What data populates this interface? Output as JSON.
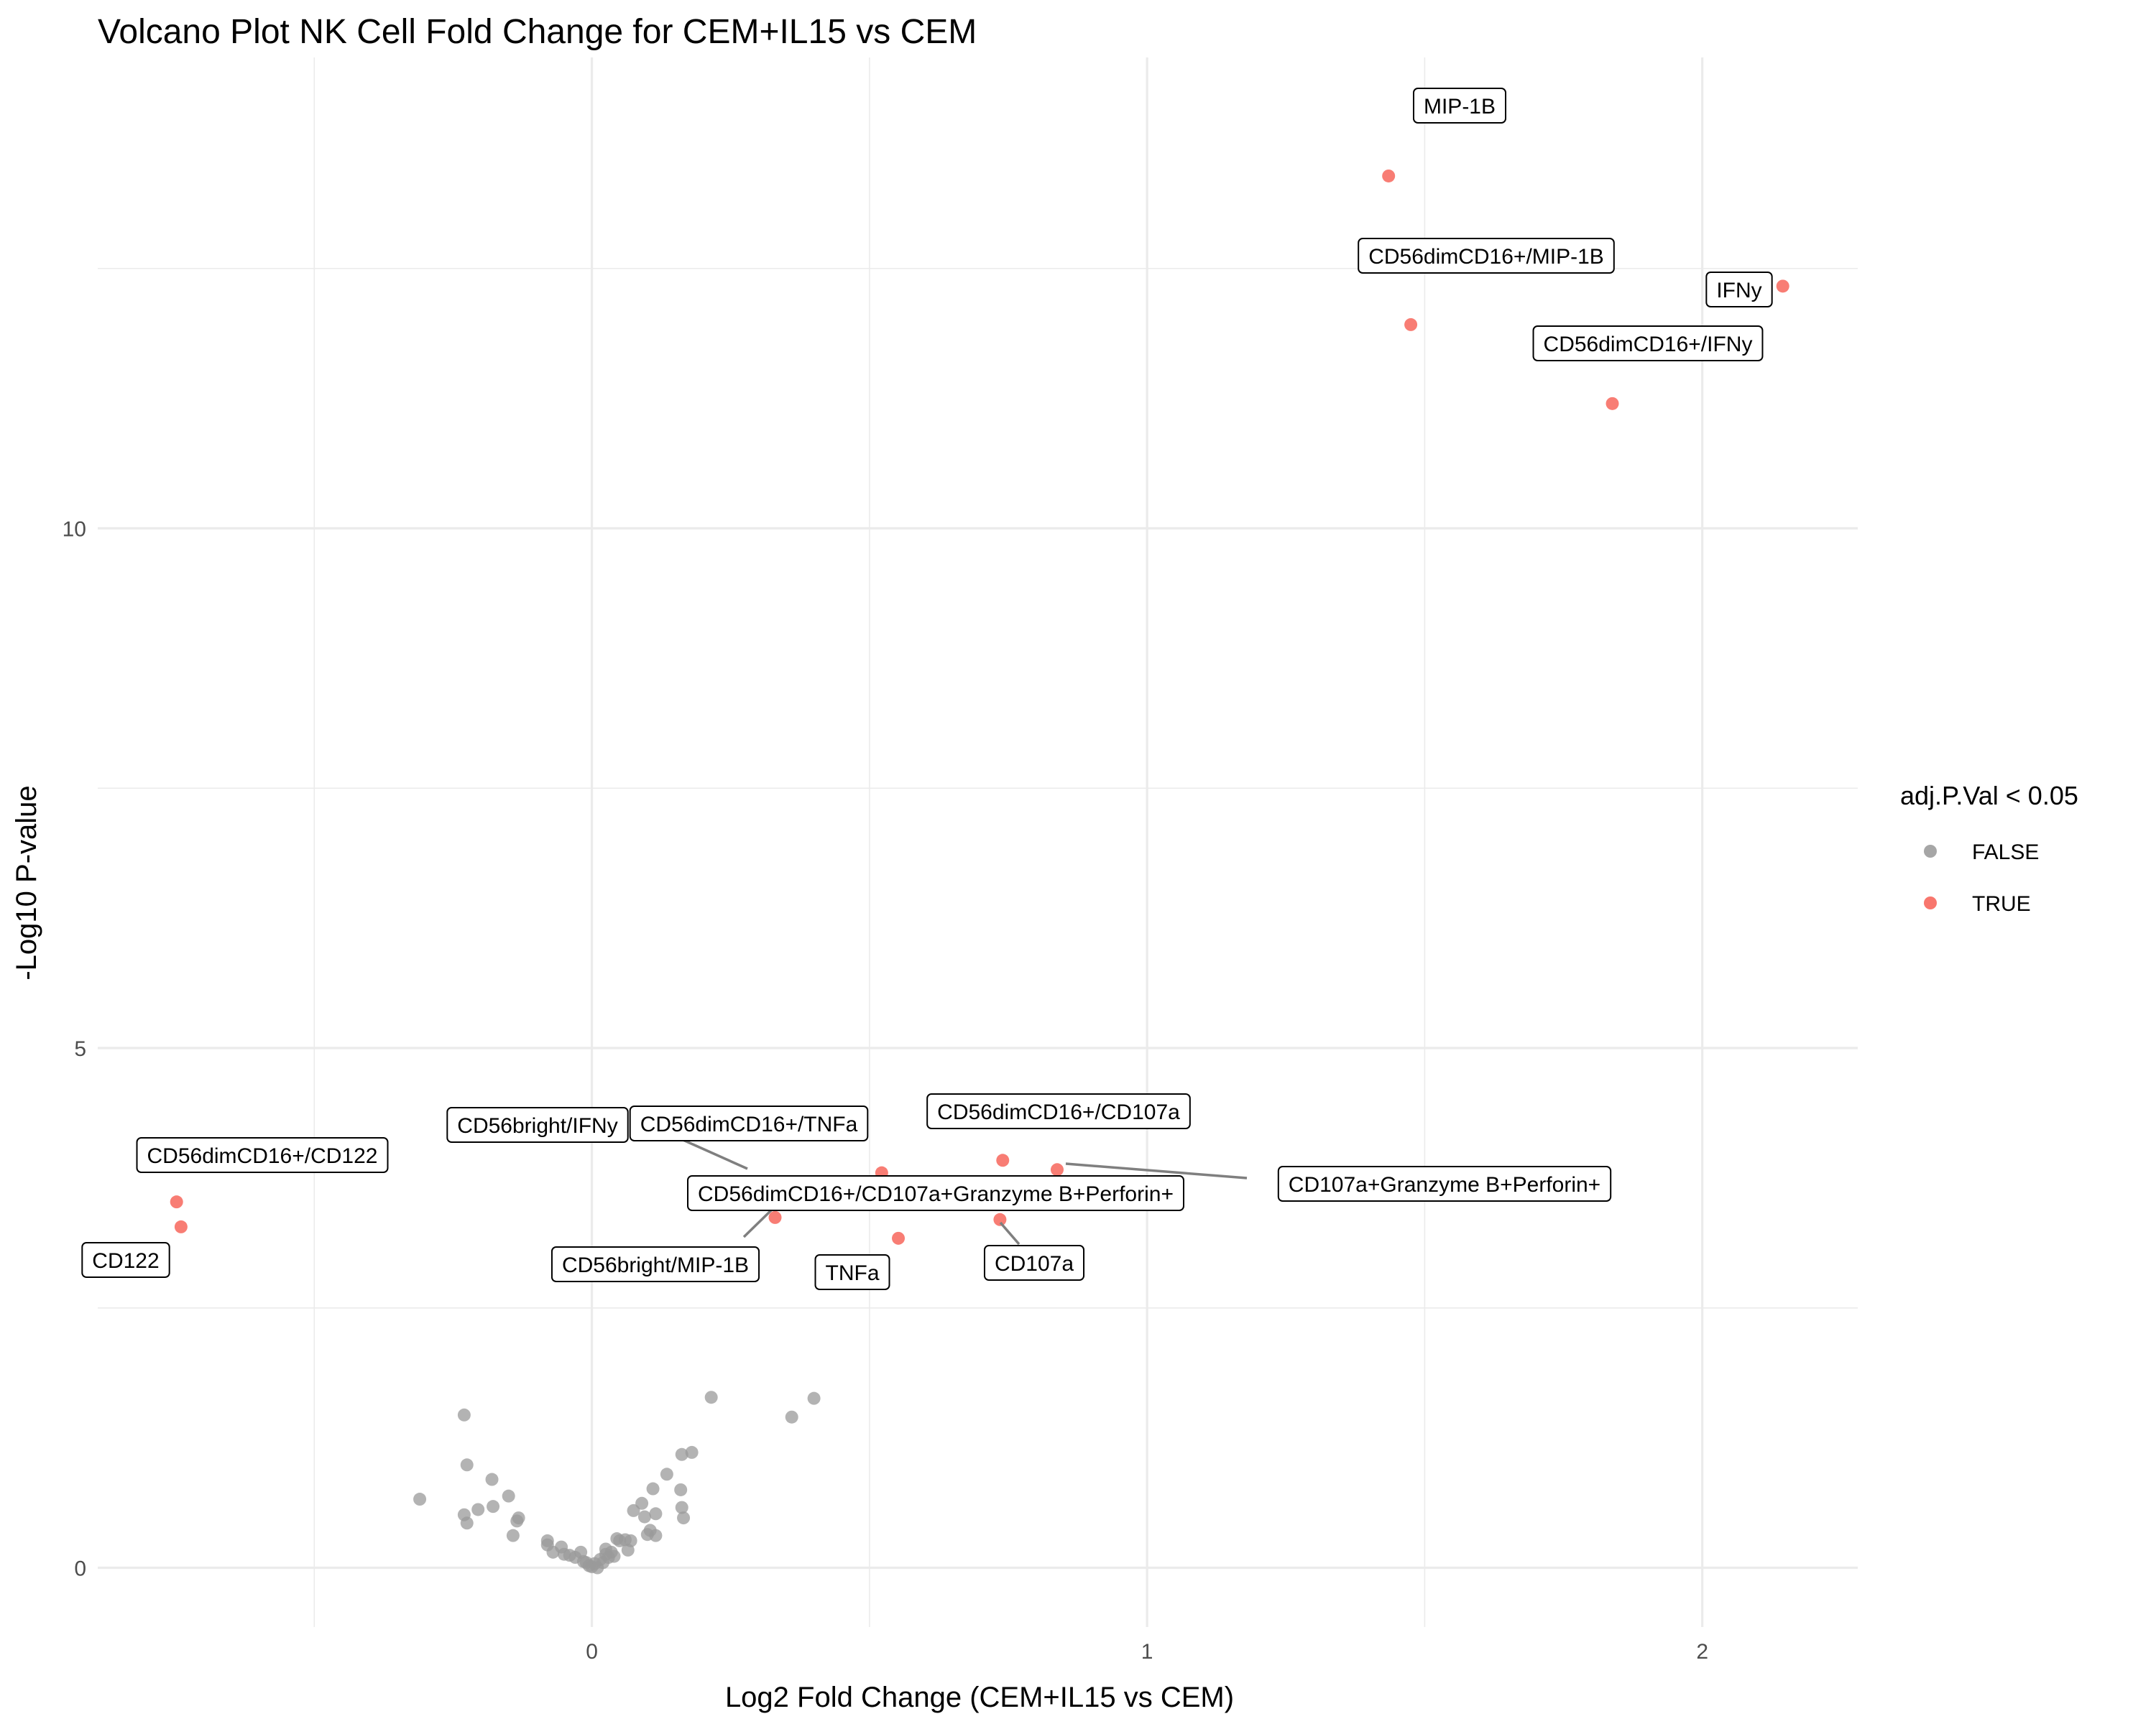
{
  "chart_data": {
    "type": "scatter",
    "title": "Volcano Plot NK Cell Fold Change for CEM+IL15 vs CEM",
    "xlabel": "Log2 Fold Change (CEM+IL15 vs CEM)",
    "ylabel": "-Log10 P-value",
    "xlim": [
      -0.89,
      2.28
    ],
    "ylim": [
      -0.57,
      14.53
    ],
    "x_ticks": [
      0,
      1,
      2
    ],
    "y_ticks": [
      0,
      5,
      10
    ],
    "grid": true,
    "legend": {
      "title": "adj.P.Val < 0.05",
      "position": "right",
      "entries": [
        {
          "label": "FALSE",
          "color": "#a6a6a6"
        },
        {
          "label": "TRUE",
          "color": "#f8766d"
        }
      ]
    },
    "series": [
      {
        "name": "FALSE",
        "color": "#999999",
        "points": [
          [
            -0.31,
            0.66
          ],
          [
            -0.23,
            1.47
          ],
          [
            -0.225,
            0.99
          ],
          [
            -0.23,
            0.51
          ],
          [
            -0.225,
            0.43
          ],
          [
            -0.205,
            0.56
          ],
          [
            -0.18,
            0.85
          ],
          [
            -0.178,
            0.59
          ],
          [
            -0.15,
            0.69
          ],
          [
            -0.142,
            0.31
          ],
          [
            -0.135,
            0.45
          ],
          [
            -0.132,
            0.48
          ],
          [
            -0.08,
            0.26
          ],
          [
            -0.08,
            0.22
          ],
          [
            -0.07,
            0.15
          ],
          [
            -0.055,
            0.2
          ],
          [
            -0.05,
            0.13
          ],
          [
            -0.04,
            0.12
          ],
          [
            -0.03,
            0.1
          ],
          [
            -0.02,
            0.15
          ],
          [
            -0.015,
            0.06
          ],
          [
            -0.01,
            0.05
          ],
          [
            -0.005,
            0.02
          ],
          [
            0.0,
            0.01
          ],
          [
            0.005,
            0.04
          ],
          [
            0.01,
            0.0
          ],
          [
            0.015,
            0.08
          ],
          [
            0.02,
            0.05
          ],
          [
            0.025,
            0.13
          ],
          [
            0.03,
            0.1
          ],
          [
            0.035,
            0.15
          ],
          [
            0.04,
            0.11
          ],
          [
            0.045,
            0.28
          ],
          [
            0.05,
            0.26
          ],
          [
            0.06,
            0.27
          ],
          [
            0.065,
            0.17
          ],
          [
            0.07,
            0.26
          ],
          [
            0.075,
            0.55
          ],
          [
            0.09,
            0.62
          ],
          [
            0.095,
            0.49
          ],
          [
            0.1,
            0.32
          ],
          [
            0.105,
            0.36
          ],
          [
            0.11,
            0.76
          ],
          [
            0.115,
            0.52
          ],
          [
            0.115,
            0.31
          ],
          [
            0.135,
            0.9
          ],
          [
            0.16,
            0.75
          ],
          [
            0.162,
            0.58
          ],
          [
            0.165,
            0.48
          ],
          [
            0.162,
            1.09
          ],
          [
            0.18,
            1.11
          ],
          [
            0.215,
            1.64
          ],
          [
            0.36,
            1.45
          ],
          [
            0.4,
            1.63
          ],
          [
            0.025,
            0.18
          ]
        ]
      },
      {
        "name": "TRUE",
        "color": "#f8766d",
        "points": [
          [
            1.435,
            13.39
          ],
          [
            2.145,
            12.33
          ],
          [
            1.475,
            11.96
          ],
          [
            1.838,
            11.2
          ],
          [
            -0.748,
            3.52
          ],
          [
            -0.74,
            3.28
          ],
          [
            0.522,
            3.8
          ],
          [
            0.74,
            3.92
          ],
          [
            0.838,
            3.83
          ],
          [
            0.552,
            3.17
          ],
          [
            0.735,
            3.35
          ],
          [
            0.33,
            3.37
          ]
        ]
      }
    ],
    "annotations": [
      {
        "text": "MIP-1B",
        "x": 1.435,
        "y": 13.39
      },
      {
        "text": "CD56dimCD16+/MIP-1B",
        "x": 1.475,
        "y": 11.96
      },
      {
        "text": "IFNy",
        "x": 2.145,
        "y": 12.33
      },
      {
        "text": "CD56dimCD16+/IFNy",
        "x": 1.838,
        "y": 11.2
      },
      {
        "text": "CD56dimCD16+/CD122",
        "x": -0.748,
        "y": 3.52
      },
      {
        "text": "CD122",
        "x": -0.74,
        "y": 3.28
      },
      {
        "text": "CD56bright/IFNy",
        "x": 0.33,
        "y": 3.37
      },
      {
        "text": "CD56dimCD16+/TNFa",
        "x": 0.522,
        "y": 3.8
      },
      {
        "text": "CD56dimCD16+/CD107a",
        "x": 0.74,
        "y": 3.92
      },
      {
        "text": "CD56dimCD16+/CD107a+Granzyme B+Perforin+",
        "x": 0.33,
        "y": 3.37
      },
      {
        "text": "CD107a+Granzyme B+Perforin+",
        "x": 0.838,
        "y": 3.83
      },
      {
        "text": "CD56bright/MIP-1B",
        "x": 0.33,
        "y": 3.37
      },
      {
        "text": "TNFa",
        "x": 0.552,
        "y": 3.17
      },
      {
        "text": "CD107a",
        "x": 0.735,
        "y": 3.35
      }
    ]
  }
}
